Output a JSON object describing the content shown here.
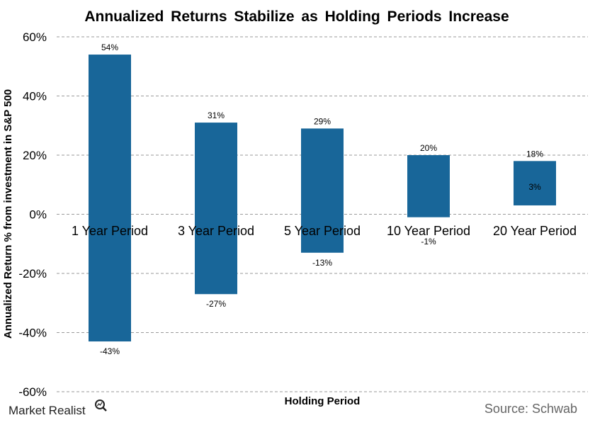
{
  "colors": {
    "bar": "#186699",
    "grid": "#9a9a9a"
  },
  "logo": {
    "text": "Market Realist",
    "icon": "magnifier-icon"
  },
  "source": "Source: Schwab",
  "chart_data": {
    "type": "bar",
    "title": "Annualized Returns Stabilize as Holding Periods Increase",
    "xlabel": "Holding Period",
    "ylabel": "Annualized Return % from investment in S&P 500",
    "ylim": [
      -60,
      60
    ],
    "yticks": [
      60,
      40,
      20,
      0,
      -20,
      -40,
      -60
    ],
    "ytick_labels": [
      "60%",
      "40%",
      "20%",
      "0%",
      "-20%",
      "-40%",
      "-60%"
    ],
    "grid": true,
    "categories": [
      "1 Year Period",
      "3 Year Period",
      "5 Year Period",
      "10 Year Period",
      "20 Year Period"
    ],
    "series": [
      {
        "values": [
          54,
          31,
          29,
          20,
          18
        ],
        "labels": [
          "54%",
          "31%",
          "29%",
          "20%",
          "18%"
        ]
      },
      {
        "values": [
          -43,
          -27,
          -13,
          -1,
          3
        ],
        "labels": [
          "-43%",
          "-27%",
          "-13%",
          "-1%",
          "3%"
        ]
      }
    ]
  }
}
